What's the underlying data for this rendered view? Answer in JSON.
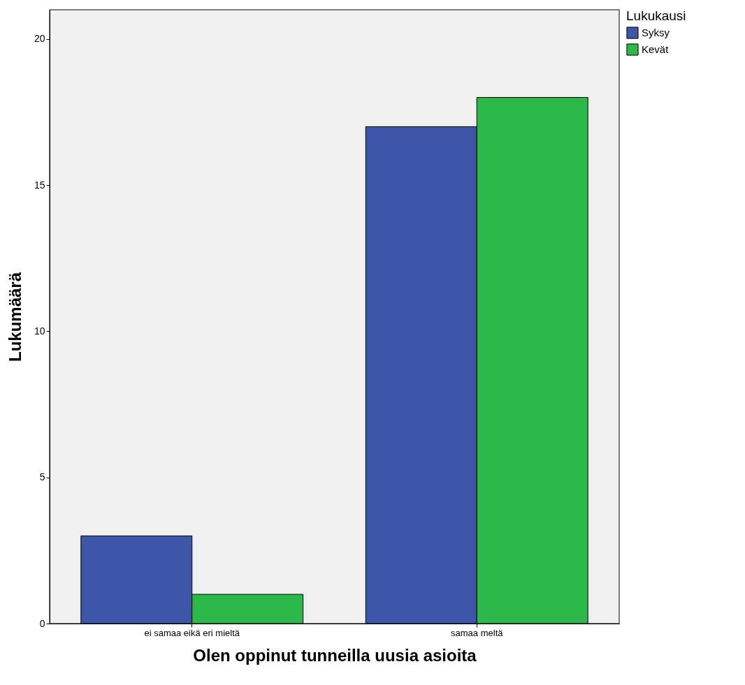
{
  "chart_data": {
    "type": "bar",
    "xlabel": "Olen oppinut tunneilla uusia asioita",
    "ylabel": "Lukumäärä",
    "legend_title": "Lukukausi",
    "categories": [
      "ei samaa eikä eri mieltä",
      "samaa meltä"
    ],
    "series": [
      {
        "name": "Syksy",
        "color": "#3d56a8",
        "values": [
          3,
          17
        ]
      },
      {
        "name": "Kevät",
        "color": "#2db84a",
        "values": [
          1,
          18
        ]
      }
    ],
    "ylim": [
      0,
      21
    ],
    "yticks": [
      0,
      5,
      10,
      15,
      20
    ],
    "grid": false,
    "legend": "top right"
  }
}
